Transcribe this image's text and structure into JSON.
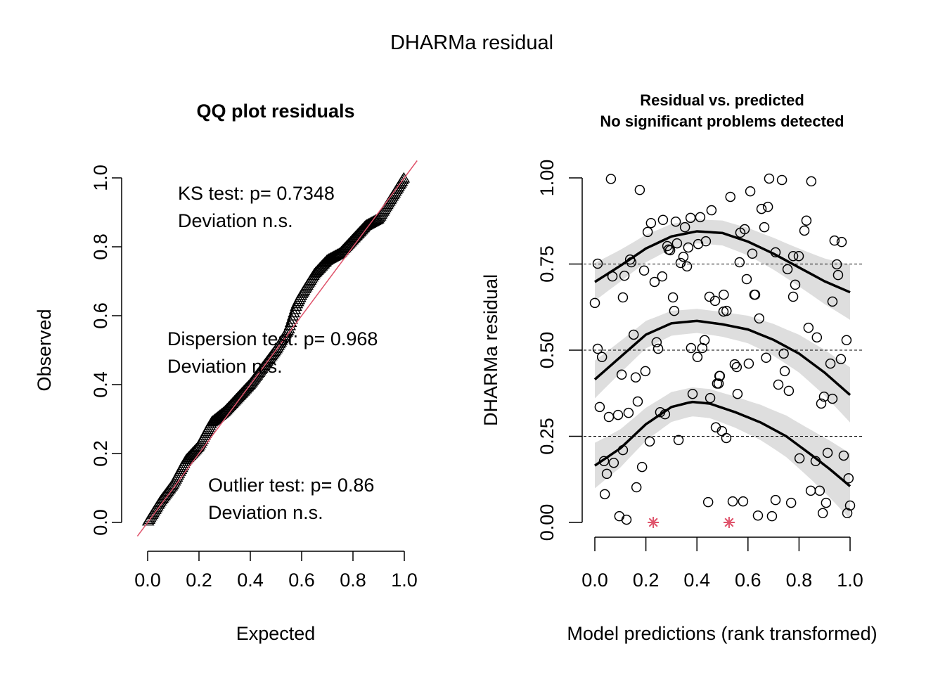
{
  "page_title": "DHARMa residual",
  "chart_data": [
    {
      "type": "scatter",
      "panel": "left",
      "title": "QQ plot residuals",
      "xlabel": "Expected",
      "ylabel": "Observed",
      "xlim": [
        0,
        1
      ],
      "ylim": [
        0,
        1
      ],
      "xticks": [
        "0.0",
        "0.2",
        "0.4",
        "0.6",
        "0.8",
        "1.0"
      ],
      "yticks": [
        "0.0",
        "0.2",
        "0.4",
        "0.6",
        "0.8",
        "1.0"
      ],
      "marker": "triangle-open",
      "reference_line": {
        "slope": 1,
        "intercept": 0,
        "color": "#DF536B"
      },
      "annotations": [
        {
          "line1": "KS test: p= 0.7348",
          "line2": "Deviation  n.s."
        },
        {
          "line1": "Dispersion test: p= 0.968",
          "line2": "Deviation  n.s."
        },
        {
          "line1": "Outlier test: p= 0.86",
          "line2": "Deviation  n.s."
        }
      ],
      "qq_profile": {
        "expected": [
          0.0,
          0.05,
          0.1,
          0.15,
          0.2,
          0.25,
          0.3,
          0.35,
          0.4,
          0.45,
          0.5,
          0.55,
          0.58,
          0.6,
          0.65,
          0.7,
          0.75,
          0.8,
          0.85,
          0.9,
          0.95,
          1.0
        ],
        "observed": [
          0.0,
          0.06,
          0.11,
          0.18,
          0.22,
          0.29,
          0.32,
          0.36,
          0.4,
          0.45,
          0.5,
          0.56,
          0.63,
          0.66,
          0.72,
          0.76,
          0.78,
          0.82,
          0.86,
          0.88,
          0.94,
          1.0
        ]
      }
    },
    {
      "type": "scatter",
      "panel": "right",
      "title_line1": "Residual vs. predicted",
      "title_line2": "No significant problems detected",
      "xlabel": "Model predictions (rank transformed)",
      "ylabel": "DHARMa residual",
      "xlim": [
        0,
        1
      ],
      "ylim": [
        0,
        1
      ],
      "xticks": [
        "0.0",
        "0.2",
        "0.4",
        "0.6",
        "0.8",
        "1.0"
      ],
      "yticks": [
        "0.00",
        "0.25",
        "0.50",
        "0.75",
        "1.00"
      ],
      "reference_lines": [
        0.25,
        0.5,
        0.75
      ],
      "points": [
        [
          0.063,
          0.997
        ],
        [
          0.176,
          0.965
        ],
        [
          0.22,
          0.869
        ],
        [
          0.207,
          0.843
        ],
        [
          0.267,
          0.878
        ],
        [
          0.317,
          0.873
        ],
        [
          0.375,
          0.884
        ],
        [
          0.413,
          0.886
        ],
        [
          0.457,
          0.906
        ],
        [
          0.353,
          0.857
        ],
        [
          0.322,
          0.81
        ],
        [
          0.284,
          0.802
        ],
        [
          0.289,
          0.792
        ],
        [
          0.295,
          0.79
        ],
        [
          0.366,
          0.798
        ],
        [
          0.405,
          0.808
        ],
        [
          0.435,
          0.816
        ],
        [
          0.347,
          0.771
        ],
        [
          0.336,
          0.753
        ],
        [
          0.361,
          0.743
        ],
        [
          0.011,
          0.751
        ],
        [
          0.138,
          0.763
        ],
        [
          0.143,
          0.755
        ],
        [
          0.069,
          0.714
        ],
        [
          0.116,
          0.716
        ],
        [
          0.193,
          0.731
        ],
        [
          0.264,
          0.714
        ],
        [
          0.234,
          0.698
        ],
        [
          0.683,
          0.998
        ],
        [
          0.733,
          0.994
        ],
        [
          0.848,
          0.99
        ],
        [
          0.609,
          0.961
        ],
        [
          0.531,
          0.945
        ],
        [
          0.653,
          0.91
        ],
        [
          0.678,
          0.916
        ],
        [
          0.829,
          0.876
        ],
        [
          0.821,
          0.847
        ],
        [
          0.664,
          0.857
        ],
        [
          0.587,
          0.851
        ],
        [
          0.57,
          0.841
        ],
        [
          0.939,
          0.818
        ],
        [
          0.967,
          0.814
        ],
        [
          0.617,
          0.78
        ],
        [
          0.708,
          0.784
        ],
        [
          0.777,
          0.773
        ],
        [
          0.799,
          0.773
        ],
        [
          0.567,
          0.755
        ],
        [
          0.948,
          0.749
        ],
        [
          0.953,
          0.718
        ],
        [
          0.755,
          0.735
        ],
        [
          0.595,
          0.706
        ],
        [
          0.785,
          0.69
        ],
        [
          0.625,
          0.661
        ],
        [
          0.11,
          0.653
        ],
        [
          0.0,
          0.637
        ],
        [
          0.306,
          0.653
        ],
        [
          0.311,
          0.614
        ],
        [
          0.449,
          0.655
        ],
        [
          0.471,
          0.643
        ],
        [
          0.504,
          0.612
        ],
        [
          0.152,
          0.545
        ],
        [
          0.242,
          0.523
        ],
        [
          0.248,
          0.504
        ],
        [
          0.011,
          0.504
        ],
        [
          0.028,
          0.48
        ],
        [
          0.377,
          0.506
        ],
        [
          0.421,
          0.506
        ],
        [
          0.43,
          0.529
        ],
        [
          0.402,
          0.48
        ],
        [
          0.105,
          0.429
        ],
        [
          0.16,
          0.421
        ],
        [
          0.198,
          0.439
        ],
        [
          0.488,
          0.425
        ],
        [
          0.485,
          0.403
        ],
        [
          0.168,
          0.351
        ],
        [
          0.019,
          0.335
        ],
        [
          0.055,
          0.306
        ],
        [
          0.091,
          0.312
        ],
        [
          0.132,
          0.318
        ],
        [
          0.383,
          0.373
        ],
        [
          0.452,
          0.361
        ],
        [
          0.256,
          0.32
        ],
        [
          0.275,
          0.314
        ],
        [
          0.505,
          0.661
        ],
        [
          0.628,
          0.661
        ],
        [
          0.777,
          0.655
        ],
        [
          0.931,
          0.641
        ],
        [
          0.516,
          0.614
        ],
        [
          0.644,
          0.592
        ],
        [
          0.837,
          0.565
        ],
        [
          0.87,
          0.537
        ],
        [
          0.986,
          0.529
        ],
        [
          0.74,
          0.49
        ],
        [
          0.671,
          0.478
        ],
        [
          0.548,
          0.459
        ],
        [
          0.556,
          0.451
        ],
        [
          0.603,
          0.461
        ],
        [
          0.964,
          0.474
        ],
        [
          0.923,
          0.461
        ],
        [
          0.744,
          0.439
        ],
        [
          0.49,
          0.425
        ],
        [
          0.479,
          0.403
        ],
        [
          0.719,
          0.4
        ],
        [
          0.76,
          0.382
        ],
        [
          0.559,
          0.373
        ],
        [
          0.898,
          0.365
        ],
        [
          0.931,
          0.359
        ],
        [
          0.887,
          0.345
        ],
        [
          0.215,
          0.235
        ],
        [
          0.328,
          0.239
        ],
        [
          0.474,
          0.276
        ],
        [
          0.11,
          0.21
        ],
        [
          0.036,
          0.178
        ],
        [
          0.074,
          0.173
        ],
        [
          0.047,
          0.141
        ],
        [
          0.185,
          0.161
        ],
        [
          0.163,
          0.102
        ],
        [
          0.039,
          0.082
        ],
        [
          0.444,
          0.059
        ],
        [
          0.096,
          0.018
        ],
        [
          0.124,
          0.008
        ],
        [
          0.802,
          0.186
        ],
        [
          0.865,
          0.178
        ],
        [
          0.912,
          0.202
        ],
        [
          0.975,
          0.194
        ],
        [
          0.994,
          0.128
        ],
        [
          0.846,
          0.092
        ],
        [
          0.881,
          0.092
        ],
        [
          0.906,
          0.057
        ],
        [
          1.0,
          0.049
        ],
        [
          0.893,
          0.027
        ],
        [
          0.989,
          0.027
        ],
        [
          0.54,
          0.061
        ],
        [
          0.581,
          0.061
        ],
        [
          0.708,
          0.065
        ],
        [
          0.769,
          0.057
        ],
        [
          0.639,
          0.02
        ],
        [
          0.694,
          0.018
        ],
        [
          0.515,
          0.245
        ],
        [
          0.498,
          0.265
        ]
      ],
      "outliers": [
        [
          0.229,
          0.0
        ],
        [
          0.526,
          0.0
        ]
      ],
      "outlier_color": "#DF536B",
      "quantile_curves": [
        {
          "quantile": 0.25,
          "x": [
            0.0,
            0.1,
            0.2,
            0.3,
            0.38,
            0.45,
            0.55,
            0.65,
            0.75,
            0.85,
            0.92,
            1.0
          ],
          "y": [
            0.165,
            0.215,
            0.285,
            0.335,
            0.35,
            0.345,
            0.32,
            0.29,
            0.25,
            0.195,
            0.155,
            0.105
          ],
          "band": 0.06
        },
        {
          "quantile": 0.5,
          "x": [
            0.0,
            0.1,
            0.2,
            0.3,
            0.4,
            0.5,
            0.6,
            0.7,
            0.8,
            0.9,
            1.0
          ],
          "y": [
            0.415,
            0.48,
            0.545,
            0.578,
            0.585,
            0.575,
            0.56,
            0.53,
            0.49,
            0.435,
            0.37
          ],
          "band": 0.05
        },
        {
          "quantile": 0.75,
          "x": [
            0.0,
            0.1,
            0.2,
            0.3,
            0.4,
            0.5,
            0.6,
            0.7,
            0.8,
            0.9,
            1.0
          ],
          "y": [
            0.698,
            0.745,
            0.795,
            0.83,
            0.845,
            0.84,
            0.815,
            0.78,
            0.74,
            0.7,
            0.668
          ],
          "band": 0.05
        }
      ]
    }
  ]
}
